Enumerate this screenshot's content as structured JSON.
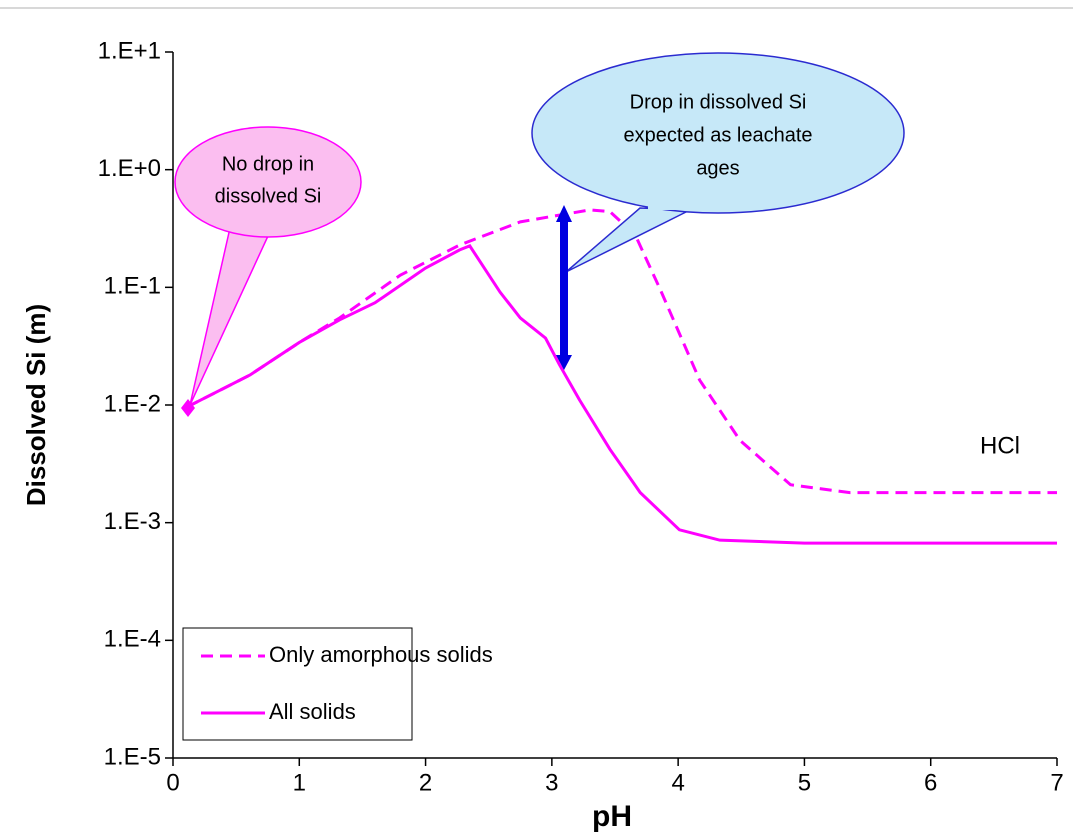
{
  "chart_data": {
    "type": "line",
    "x_label": "pH",
    "y_label": "Dissolved Si (m)",
    "xlim": [
      0,
      7
    ],
    "xticks": [
      0,
      1,
      2,
      3,
      4,
      5,
      6,
      7
    ],
    "ylim": [
      1e-05,
      10
    ],
    "log_y": true,
    "yticks": [
      {
        "value": 10,
        "label": "1.E+1"
      },
      {
        "value": 1,
        "label": "1.E+0"
      },
      {
        "value": 0.1,
        "label": "1.E-1"
      },
      {
        "value": 0.01,
        "label": "1.E-2"
      },
      {
        "value": 0.001,
        "label": "1.E-3"
      },
      {
        "value": 0.0001,
        "label": "1.E-4"
      },
      {
        "value": 1e-05,
        "label": "1.E-5"
      }
    ],
    "legend": "bottom left",
    "series": [
      {
        "name": "Only amorphous solids",
        "color": "#ff00ff",
        "dash": true,
        "x": [
          0.11,
          0.61,
          1.0,
          1.32,
          1.8,
          2.27,
          2.75,
          3.3,
          3.46,
          3.66,
          3.86,
          4.17,
          4.49,
          4.89,
          5.36,
          7.0
        ],
        "values": [
          0.0096,
          0.018,
          0.034,
          0.055,
          0.127,
          0.229,
          0.36,
          0.455,
          0.44,
          0.279,
          0.095,
          0.0163,
          0.005,
          0.0021,
          0.0018,
          0.0018
        ]
      },
      {
        "name": "All solids",
        "color": "#ff00ff",
        "dash": false,
        "x": [
          0.11,
          0.61,
          1.0,
          1.32,
          1.6,
          2.0,
          2.27,
          2.35,
          2.59,
          2.75,
          2.95,
          3.06,
          3.22,
          3.46,
          3.7,
          4.01,
          4.33,
          5.0,
          7.0
        ],
        "values": [
          0.0096,
          0.018,
          0.034,
          0.053,
          0.074,
          0.146,
          0.208,
          0.225,
          0.091,
          0.055,
          0.037,
          0.022,
          0.011,
          0.0042,
          0.0018,
          0.00087,
          0.00071,
          0.00067,
          0.00067
        ]
      }
    ],
    "annotations": {
      "left_callout": [
        "No drop in",
        "dissolved  Si"
      ],
      "right_callout": [
        "Drop in dissolved  Si",
        "expected as leachate",
        "ages"
      ],
      "label": "HCl"
    }
  }
}
